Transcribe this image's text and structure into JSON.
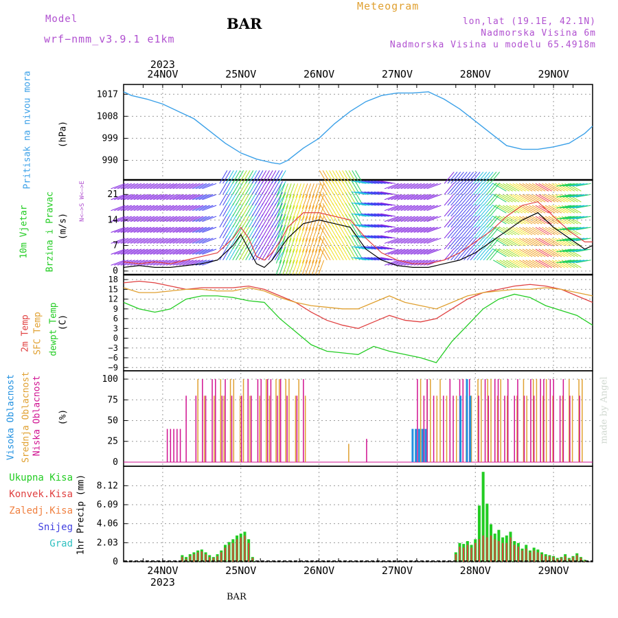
{
  "header": {
    "model_label": "Model",
    "model_name": "wrf−nmm_v3.9.1  e1km",
    "title": "BAR",
    "meteogram": "Meteogram",
    "lonlat": "lon,lat (19.1E, 42.1N)",
    "elevation": "Nadmorska Visina 6m",
    "model_elevation": "Nadmorska Visina u modelu 65.4918m",
    "footer_station": "BAR",
    "watermark": "made by Angel"
  },
  "colors": {
    "pressure": "#3aa0e8",
    "wind_speed": "#000000",
    "wind_gust": "#e04040",
    "temp_2m": "#e04040",
    "temp_sfc": "#e0a030",
    "dewpoint": "#22cc22",
    "cloud_high": "#2090e0",
    "cloud_mid": "#e0a030",
    "cloud_low": "#d01090",
    "precip_total": "#22cc22",
    "precip_conv": "#e04040",
    "purple_text": "#b050d0",
    "orange_text": "#e0a030"
  },
  "time_axis": {
    "year": "2023",
    "days": [
      "24NOV",
      "25NOV",
      "26NOV",
      "27NOV",
      "28NOV",
      "29NOV"
    ],
    "start_day_offset": -0.5,
    "end_day_offset": 5.5
  },
  "panels": {
    "pressure": {
      "ylabel_1": "Pritisak na nivou mora",
      "ylabel_2": "(hPa)",
      "ticks": [
        "990",
        "999",
        "1008",
        "1017"
      ]
    },
    "wind": {
      "ylabel_1": "10m Vjetar",
      "ylabel_2": "Brzina i Pravac",
      "ylabel_3": "(m/s)",
      "ticks": [
        "0",
        "7",
        "14",
        "21"
      ],
      "compass": "N<—>S  W<—>E"
    },
    "temp": {
      "ylabel_1": "2m Temp",
      "ylabel_2": "SFC Temp",
      "ylabel_3": "dewpt Temp",
      "ylabel_4": "(C)",
      "ticks": [
        "−9",
        "−6",
        "−3",
        "0",
        "3",
        "6",
        "9",
        "12",
        "15",
        "18"
      ]
    },
    "cloud": {
      "ylabel_1": "Visoka Oblacnost",
      "ylabel_2": "Srednja Oblacnost",
      "ylabel_3": "Niska Oblacnost",
      "ylabel_4": "(%)",
      "ticks": [
        "0",
        "25",
        "50",
        "75",
        "100"
      ]
    },
    "precip": {
      "ylabel_1": "1hr Precip (mm)",
      "ticks": [
        "0",
        "2.03",
        "4.06",
        "6.09",
        "8.12"
      ],
      "legend": [
        {
          "label": "Ukupna Kisa",
          "color": "#22cc22"
        },
        {
          "label": "Konvek.Kisa",
          "color": "#e04040"
        },
        {
          "label": "Zaledj.Kisa",
          "color": "#f08040"
        },
        {
          "label": "Snijeg",
          "color": "#4040e0"
        },
        {
          "label": "Grad",
          "color": "#30c0c0"
        }
      ]
    }
  },
  "chart_data": [
    {
      "type": "line",
      "title": "Pritisak na nivou mora",
      "ylabel": "(hPa)",
      "ylim": [
        982,
        1021
      ],
      "x_days": [
        -0.5,
        -0.4,
        -0.2,
        0.0,
        0.2,
        0.4,
        0.6,
        0.8,
        1.0,
        1.2,
        1.4,
        1.5,
        1.6,
        1.8,
        2.0,
        2.2,
        2.4,
        2.6,
        2.8,
        3.0,
        3.2,
        3.4,
        3.6,
        3.8,
        4.0,
        4.2,
        4.4,
        4.6,
        4.8,
        5.0,
        5.2,
        5.4,
        5.5
      ],
      "series": [
        {
          "values": [
            1018,
            1016.5,
            1015,
            1013,
            1010,
            1007,
            1002,
            997,
            993,
            990.5,
            989,
            988.5,
            990,
            995,
            999,
            1005,
            1010,
            1014,
            1016.5,
            1017.5,
            1017.5,
            1018,
            1015,
            1011,
            1006,
            1001,
            996,
            994.5,
            994.5,
            995.5,
            997,
            1001,
            1004
          ]
        }
      ]
    },
    {
      "type": "line",
      "title": "10m Vjetar Brzina i Pravac",
      "ylabel": "(m/s)",
      "ylim": [
        -1,
        25
      ],
      "x_days": [
        -0.5,
        -0.3,
        -0.1,
        0.1,
        0.3,
        0.5,
        0.7,
        0.9,
        1.0,
        1.1,
        1.2,
        1.3,
        1.4,
        1.5,
        1.6,
        1.8,
        2.0,
        2.2,
        2.4,
        2.6,
        2.8,
        3.0,
        3.2,
        3.4,
        3.6,
        3.8,
        4.0,
        4.2,
        4.4,
        4.6,
        4.8,
        5.0,
        5.2,
        5.4,
        5.5
      ],
      "series": [
        {
          "values": [
            1,
            1.5,
            1,
            1,
            1.5,
            2,
            3,
            7,
            10,
            6,
            2,
            1,
            3,
            6,
            9,
            13,
            14,
            13,
            12,
            6,
            3,
            1.5,
            1,
            1,
            2,
            3,
            5,
            8,
            11,
            14,
            16,
            12,
            9,
            6,
            7
          ]
        },
        {
          "values": [
            2.5,
            2,
            2.5,
            2,
            3,
            4,
            5,
            9,
            12,
            9,
            4,
            3,
            5,
            8,
            12,
            16,
            16,
            15,
            14,
            9,
            5,
            3,
            2,
            2,
            3,
            5,
            8,
            11,
            15,
            18,
            19,
            15,
            11,
            8,
            8
          ]
        }
      ]
    },
    {
      "type": "line",
      "title": "2m Temp / SFC Temp / dewpt Temp",
      "ylabel": "(C)",
      "ylim": [
        -10,
        19.5
      ],
      "x_days": [
        -0.5,
        -0.3,
        -0.1,
        0.1,
        0.3,
        0.5,
        0.7,
        0.9,
        1.1,
        1.3,
        1.5,
        1.7,
        1.9,
        2.1,
        2.3,
        2.5,
        2.7,
        2.9,
        3.1,
        3.3,
        3.5,
        3.7,
        3.9,
        4.1,
        4.3,
        4.5,
        4.7,
        4.9,
        5.1,
        5.3,
        5.5
      ],
      "series": [
        {
          "values": [
            17,
            17.5,
            17,
            16,
            15,
            15.5,
            15.5,
            15.5,
            16,
            15,
            13,
            11,
            8,
            5.5,
            4,
            3,
            5,
            7,
            5.5,
            5,
            6,
            9,
            12,
            14,
            15,
            16,
            16.5,
            16,
            15,
            13,
            11
          ]
        },
        {
          "values": [
            15.5,
            14,
            14,
            14.5,
            15,
            15,
            14.5,
            14.5,
            15.5,
            14.5,
            12.5,
            11,
            10,
            9.5,
            9,
            9,
            11,
            13,
            11,
            10,
            9,
            11,
            13,
            14,
            14.5,
            15,
            15,
            15.5,
            15,
            14,
            13
          ]
        },
        {
          "values": [
            11,
            9,
            8,
            9,
            12,
            13,
            13,
            12.5,
            11.5,
            11,
            6,
            2,
            -2,
            -4,
            -4.5,
            -5,
            -2.5,
            -4,
            -5,
            -6,
            -7.5,
            -1,
            4,
            9,
            12,
            13.5,
            12.5,
            10,
            8.5,
            7,
            4
          ]
        }
      ]
    },
    {
      "type": "bar",
      "title": "Visoka / Srednja / Niska Oblacnost",
      "ylabel": "(%)",
      "ylim": [
        -5,
        110
      ],
      "series": [
        {
          "name": "Srednja Oblacnost",
          "ranges": [
            [
              0.45,
              1.85
            ],
            [
              2.38,
              2.4
            ],
            [
              3.3,
              3.95
            ],
            [
              3.95,
              5.45
            ]
          ],
          "values": [
            100,
            22,
            100,
            100
          ]
        },
        {
          "name": "Niska Oblacnost",
          "ranges": [
            [
              0.05,
              0.25
            ],
            [
              0.25,
              1.8
            ],
            [
              2.6,
              2.62
            ],
            [
              3.25,
              3.95
            ],
            [
              3.95,
              5.4
            ]
          ],
          "values": [
            40,
            100,
            28,
            100,
            100
          ]
        },
        {
          "name": "Visoka Oblacnost",
          "ranges": [
            [
              3.18,
              3.35
            ],
            [
              3.75,
              3.95
            ]
          ],
          "values": [
            40,
            100
          ]
        }
      ]
    },
    {
      "type": "bar",
      "title": "1hr Precip",
      "ylabel": "(mm)",
      "ylim": [
        0,
        10.2
      ],
      "x_days": [
        0.25,
        0.3,
        0.35,
        0.4,
        0.45,
        0.5,
        0.55,
        0.6,
        0.65,
        0.7,
        0.75,
        0.8,
        0.85,
        0.9,
        0.95,
        1.0,
        1.05,
        1.1,
        1.15,
        3.75,
        3.8,
        3.85,
        3.9,
        3.95,
        4.0,
        4.05,
        4.1,
        4.15,
        4.2,
        4.25,
        4.3,
        4.35,
        4.4,
        4.45,
        4.5,
        4.55,
        4.6,
        4.65,
        4.7,
        4.75,
        4.8,
        4.85,
        4.9,
        4.95,
        5.0,
        5.05,
        5.1,
        5.15,
        5.2,
        5.25,
        5.3,
        5.35,
        5.4
      ],
      "series": [
        {
          "name": "Ukupna Kisa",
          "values": [
            0.7,
            0.5,
            0.8,
            1.0,
            1.2,
            1.3,
            1.0,
            0.7,
            0.5,
            0.8,
            1.2,
            1.8,
            2.1,
            2.4,
            2.8,
            3.0,
            3.2,
            2.4,
            0.5,
            1.0,
            2.0,
            1.9,
            2.2,
            1.8,
            2.4,
            6.0,
            9.6,
            6.2,
            4.0,
            3.0,
            3.4,
            2.6,
            2.8,
            3.2,
            2.2,
            2.0,
            1.4,
            1.8,
            1.2,
            1.5,
            1.3,
            1.0,
            0.8,
            0.7,
            0.6,
            0.4,
            0.5,
            0.8,
            0.4,
            0.6,
            0.9,
            0.5,
            0.2
          ]
        },
        {
          "name": "Konvek.Kisa",
          "values": [
            0.5,
            0.3,
            0.6,
            0.8,
            1.0,
            1.1,
            0.8,
            0.5,
            0.4,
            0.6,
            1.0,
            1.5,
            1.8,
            2.0,
            2.4,
            2.6,
            2.8,
            2.0,
            0.4,
            0.8,
            1.6,
            1.5,
            1.8,
            1.5,
            2.0,
            2.4,
            2.8,
            2.6,
            2.8,
            2.4,
            2.2,
            2.0,
            2.0,
            2.6,
            1.8,
            1.6,
            1.2,
            1.4,
            1.0,
            1.2,
            1.0,
            0.8,
            0.6,
            0.6,
            0.5,
            0.3,
            0.4,
            0.6,
            0.3,
            0.5,
            0.7,
            0.4,
            0.1
          ]
        }
      ]
    }
  ]
}
